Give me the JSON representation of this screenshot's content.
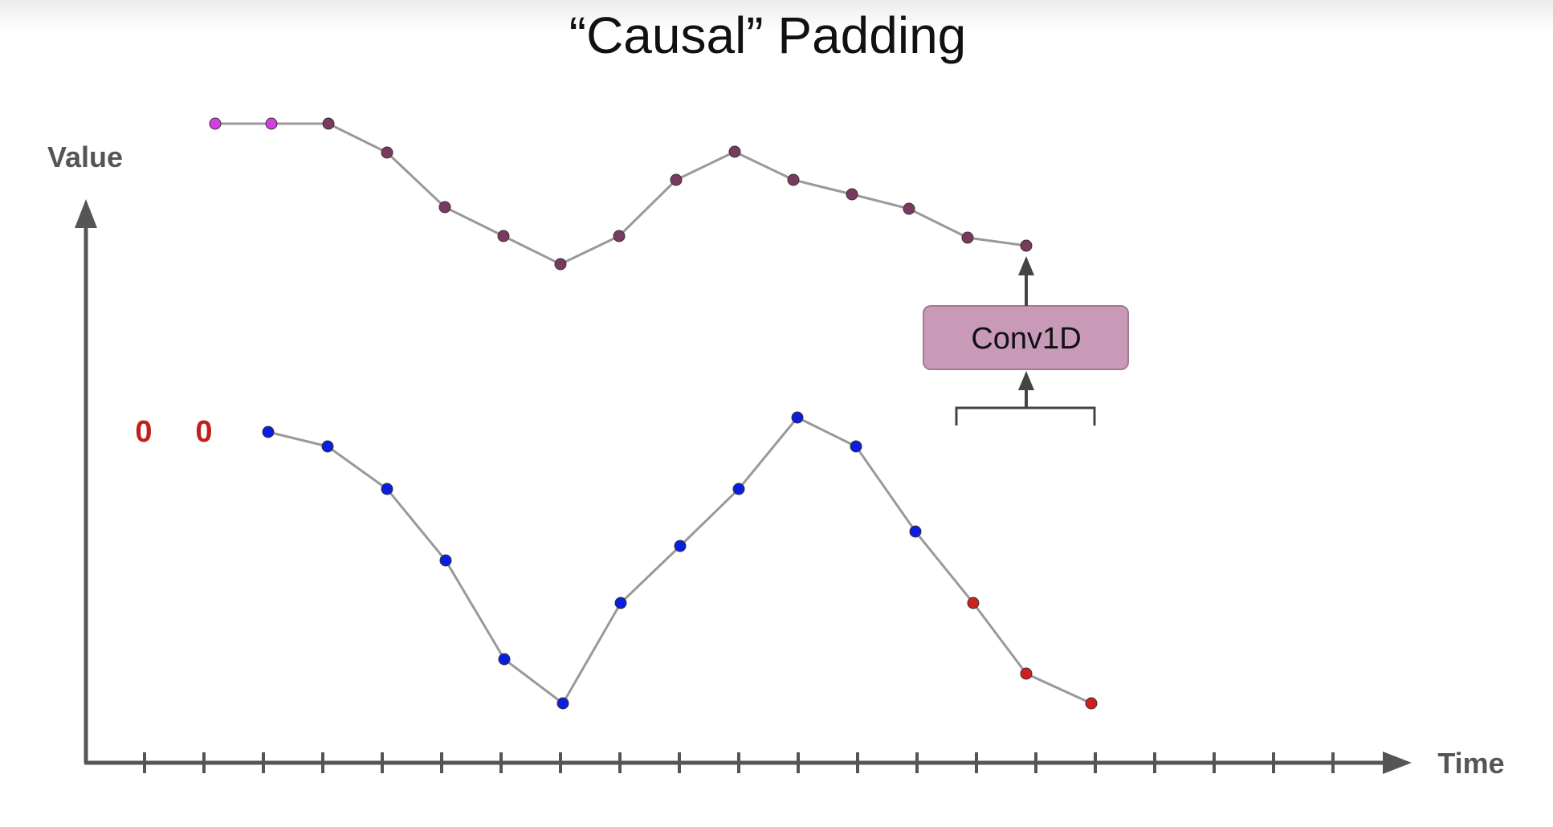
{
  "title": "“Causal” Padding",
  "y_axis_label": "Value",
  "x_axis_label": "Time",
  "padding_values": [
    "0",
    "0"
  ],
  "layer_label": "Conv1D"
}
